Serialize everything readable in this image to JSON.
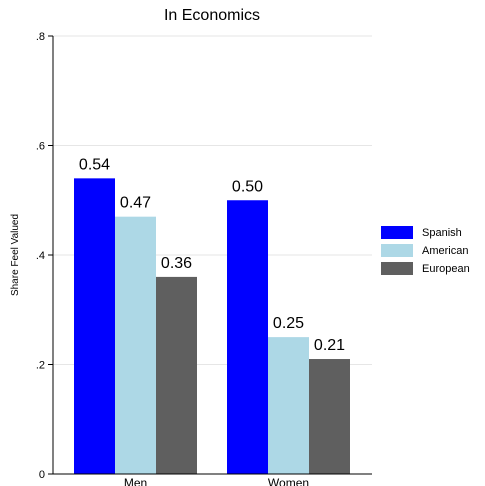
{
  "chart_data": {
    "type": "bar",
    "title": "In Economics",
    "xlabel": "",
    "ylabel": "Share Feel Valued",
    "categories": [
      "Men",
      "Women"
    ],
    "series": [
      {
        "name": "Spanish",
        "values": [
          0.54,
          0.5
        ],
        "labels": [
          "0.54",
          "0.50"
        ],
        "color": "#0000ff"
      },
      {
        "name": "American",
        "values": [
          0.47,
          0.25
        ],
        "labels": [
          "0.47",
          "0.25"
        ],
        "color": "#add8e6"
      },
      {
        "name": "European",
        "values": [
          0.36,
          0.21
        ],
        "labels": [
          "0.36",
          "0.21"
        ],
        "color": "#5f5f5f"
      }
    ],
    "ylim": [
      0,
      0.8
    ],
    "yticks": [
      0,
      0.2,
      0.4,
      0.6,
      0.8
    ],
    "ytick_labels": [
      "0",
      ".2",
      ".4",
      ".6",
      ".8"
    ],
    "grid": true,
    "legend_position": "right"
  }
}
